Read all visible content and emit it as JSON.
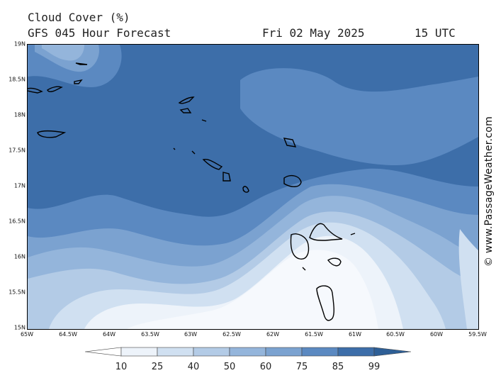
{
  "header": {
    "title": "Cloud Cover (%)",
    "subtitle": "GFS 045 Hour Forecast",
    "date": "Fri 02 May 2025",
    "time": "15 UTC"
  },
  "credit": "© www.PassageWeather.com",
  "map": {
    "lat_labels": [
      "19N",
      "18.5N",
      "18N",
      "17.5N",
      "17N",
      "16.5N",
      "16N",
      "15.5N",
      "15N"
    ],
    "lon_labels": [
      "65W",
      "64.5W",
      "64W",
      "63.5W",
      "63W",
      "62.5W",
      "62W",
      "61.5W",
      "61W",
      "60.5W",
      "60W",
      "59.5W"
    ],
    "lat_range": [
      15,
      19
    ],
    "lon_range": [
      -65,
      -59.5
    ]
  },
  "legend": {
    "levels": [
      "10",
      "25",
      "40",
      "50",
      "60",
      "75",
      "85",
      "99"
    ],
    "colors": [
      "#ffffff",
      "#edf3fa",
      "#d0e0f1",
      "#b3cbe6",
      "#94b5db",
      "#7ba2d0",
      "#5b89c1",
      "#3d6ea9",
      "#2e5f96"
    ]
  },
  "colors": {
    "lowest": "#f6f9fd",
    "land_outline": "#000000",
    "border": "#000000"
  }
}
